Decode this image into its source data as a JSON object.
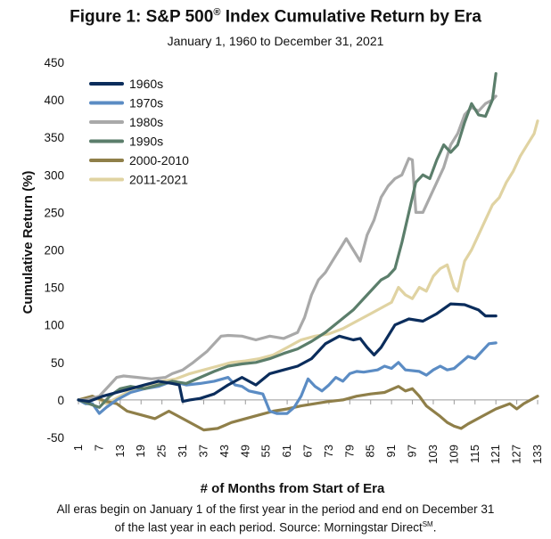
{
  "figure": {
    "title_main": "Figure 1: S&P 500",
    "title_reg": "®",
    "title_rest": " Index Cumulative Return by Era",
    "subtitle": "January 1, 1960 to December 31, 2021",
    "footnote_line1": "All eras begin on January 1 of the first year in the period and end on December 31",
    "footnote_line2": "of the last year in each period. Source: Morningstar Direct",
    "footnote_sm": "SM",
    "footnote_end": "."
  },
  "chart_data": {
    "type": "line",
    "title": "Figure 1: S&P 500® Index Cumulative Return by Era",
    "subtitle": "January 1, 1960 to December 31, 2021",
    "xlabel": "# of Months from Start of Era",
    "ylabel": "Cumulative Return (%)",
    "xlim": [
      1,
      133
    ],
    "ylim": [
      -50,
      450
    ],
    "x_ticks": [
      1,
      7,
      13,
      19,
      25,
      31,
      37,
      43,
      49,
      55,
      61,
      67,
      73,
      79,
      85,
      91,
      97,
      103,
      109,
      115,
      121,
      127,
      133
    ],
    "y_ticks": [
      -50,
      0,
      50,
      100,
      150,
      200,
      250,
      300,
      350,
      400,
      450
    ],
    "grid": false,
    "legend_position": "top-left",
    "series": [
      {
        "name": "1960s",
        "color": "#0b2d5c",
        "points": [
          [
            1,
            0
          ],
          [
            4,
            -2
          ],
          [
            8,
            5
          ],
          [
            12,
            10
          ],
          [
            16,
            15
          ],
          [
            20,
            20
          ],
          [
            24,
            25
          ],
          [
            28,
            22
          ],
          [
            30,
            20
          ],
          [
            31,
            -2
          ],
          [
            33,
            0
          ],
          [
            36,
            2
          ],
          [
            40,
            8
          ],
          [
            44,
            20
          ],
          [
            48,
            30
          ],
          [
            52,
            20
          ],
          [
            56,
            35
          ],
          [
            60,
            40
          ],
          [
            64,
            45
          ],
          [
            68,
            55
          ],
          [
            72,
            75
          ],
          [
            76,
            85
          ],
          [
            80,
            80
          ],
          [
            82,
            82
          ],
          [
            84,
            70
          ],
          [
            86,
            60
          ],
          [
            88,
            70
          ],
          [
            92,
            100
          ],
          [
            96,
            108
          ],
          [
            100,
            105
          ],
          [
            104,
            115
          ],
          [
            108,
            128
          ],
          [
            112,
            127
          ],
          [
            116,
            120
          ],
          [
            118,
            112
          ],
          [
            121,
            112
          ]
        ]
      },
      {
        "name": "1970s",
        "color": "#5b8cc4",
        "points": [
          [
            1,
            0
          ],
          [
            3,
            -5
          ],
          [
            5,
            -5
          ],
          [
            7,
            -18
          ],
          [
            9,
            -10
          ],
          [
            12,
            0
          ],
          [
            16,
            10
          ],
          [
            20,
            15
          ],
          [
            24,
            18
          ],
          [
            28,
            25
          ],
          [
            32,
            20
          ],
          [
            36,
            22
          ],
          [
            40,
            25
          ],
          [
            44,
            30
          ],
          [
            46,
            20
          ],
          [
            48,
            18
          ],
          [
            50,
            12
          ],
          [
            52,
            10
          ],
          [
            54,
            8
          ],
          [
            56,
            -15
          ],
          [
            58,
            -18
          ],
          [
            61,
            -18
          ],
          [
            63,
            -10
          ],
          [
            65,
            5
          ],
          [
            67,
            28
          ],
          [
            69,
            18
          ],
          [
            71,
            12
          ],
          [
            73,
            20
          ],
          [
            75,
            30
          ],
          [
            77,
            25
          ],
          [
            79,
            35
          ],
          [
            81,
            38
          ],
          [
            83,
            37
          ],
          [
            87,
            40
          ],
          [
            89,
            45
          ],
          [
            91,
            42
          ],
          [
            93,
            50
          ],
          [
            95,
            40
          ],
          [
            99,
            38
          ],
          [
            101,
            33
          ],
          [
            103,
            40
          ],
          [
            105,
            45
          ],
          [
            107,
            40
          ],
          [
            109,
            42
          ],
          [
            111,
            50
          ],
          [
            113,
            58
          ],
          [
            115,
            55
          ],
          [
            117,
            65
          ],
          [
            119,
            75
          ],
          [
            121,
            76
          ]
        ]
      },
      {
        "name": "1980s",
        "color": "#a9a9a9",
        "points": [
          [
            1,
            0
          ],
          [
            3,
            0
          ],
          [
            7,
            5
          ],
          [
            10,
            20
          ],
          [
            12,
            30
          ],
          [
            14,
            32
          ],
          [
            18,
            30
          ],
          [
            22,
            28
          ],
          [
            26,
            30
          ],
          [
            28,
            35
          ],
          [
            31,
            40
          ],
          [
            34,
            50
          ],
          [
            38,
            65
          ],
          [
            42,
            85
          ],
          [
            44,
            86
          ],
          [
            48,
            85
          ],
          [
            52,
            80
          ],
          [
            56,
            85
          ],
          [
            60,
            82
          ],
          [
            64,
            90
          ],
          [
            66,
            110
          ],
          [
            68,
            140
          ],
          [
            70,
            160
          ],
          [
            72,
            170
          ],
          [
            74,
            185
          ],
          [
            76,
            200
          ],
          [
            78,
            215
          ],
          [
            80,
            200
          ],
          [
            82,
            185
          ],
          [
            84,
            220
          ],
          [
            86,
            240
          ],
          [
            88,
            270
          ],
          [
            90,
            285
          ],
          [
            92,
            295
          ],
          [
            94,
            300
          ],
          [
            96,
            322
          ],
          [
            97,
            320
          ],
          [
            98,
            250
          ],
          [
            100,
            250
          ],
          [
            102,
            270
          ],
          [
            104,
            290
          ],
          [
            106,
            310
          ],
          [
            108,
            340
          ],
          [
            110,
            355
          ],
          [
            112,
            380
          ],
          [
            114,
            390
          ],
          [
            116,
            385
          ],
          [
            118,
            395
          ],
          [
            120,
            400
          ],
          [
            121,
            405
          ]
        ]
      },
      {
        "name": "1990s",
        "color": "#5b7e6b",
        "points": [
          [
            1,
            0
          ],
          [
            4,
            -5
          ],
          [
            7,
            -10
          ],
          [
            10,
            5
          ],
          [
            13,
            15
          ],
          [
            16,
            18
          ],
          [
            20,
            15
          ],
          [
            24,
            20
          ],
          [
            28,
            25
          ],
          [
            32,
            22
          ],
          [
            36,
            30
          ],
          [
            40,
            38
          ],
          [
            44,
            45
          ],
          [
            48,
            48
          ],
          [
            52,
            50
          ],
          [
            56,
            55
          ],
          [
            60,
            62
          ],
          [
            64,
            68
          ],
          [
            68,
            78
          ],
          [
            72,
            90
          ],
          [
            76,
            105
          ],
          [
            80,
            120
          ],
          [
            84,
            140
          ],
          [
            88,
            160
          ],
          [
            90,
            165
          ],
          [
            92,
            175
          ],
          [
            94,
            210
          ],
          [
            96,
            250
          ],
          [
            98,
            290
          ],
          [
            100,
            300
          ],
          [
            102,
            295
          ],
          [
            104,
            320
          ],
          [
            106,
            340
          ],
          [
            108,
            330
          ],
          [
            110,
            340
          ],
          [
            112,
            370
          ],
          [
            114,
            395
          ],
          [
            116,
            380
          ],
          [
            118,
            378
          ],
          [
            120,
            400
          ],
          [
            121,
            435
          ]
        ]
      },
      {
        "name": "2000-2010",
        "color": "#8f7f49",
        "points": [
          [
            1,
            0
          ],
          [
            5,
            5
          ],
          [
            9,
            -2
          ],
          [
            12,
            -5
          ],
          [
            15,
            -15
          ],
          [
            19,
            -20
          ],
          [
            23,
            -25
          ],
          [
            27,
            -15
          ],
          [
            31,
            -25
          ],
          [
            35,
            -35
          ],
          [
            37,
            -40
          ],
          [
            41,
            -38
          ],
          [
            45,
            -30
          ],
          [
            49,
            -25
          ],
          [
            53,
            -20
          ],
          [
            57,
            -15
          ],
          [
            61,
            -12
          ],
          [
            65,
            -8
          ],
          [
            69,
            -5
          ],
          [
            73,
            -2
          ],
          [
            77,
            0
          ],
          [
            81,
            5
          ],
          [
            85,
            8
          ],
          [
            89,
            10
          ],
          [
            93,
            18
          ],
          [
            95,
            12
          ],
          [
            97,
            15
          ],
          [
            99,
            5
          ],
          [
            101,
            -8
          ],
          [
            103,
            -15
          ],
          [
            105,
            -22
          ],
          [
            107,
            -30
          ],
          [
            109,
            -35
          ],
          [
            111,
            -38
          ],
          [
            113,
            -32
          ],
          [
            117,
            -22
          ],
          [
            121,
            -12
          ],
          [
            125,
            -5
          ],
          [
            127,
            -12
          ],
          [
            129,
            -5
          ],
          [
            131,
            0
          ],
          [
            133,
            5
          ]
        ]
      },
      {
        "name": "2011-2021",
        "color": "#e0d3a2",
        "points": [
          [
            1,
            0
          ],
          [
            5,
            5
          ],
          [
            9,
            -5
          ],
          [
            13,
            5
          ],
          [
            17,
            15
          ],
          [
            21,
            20
          ],
          [
            25,
            25
          ],
          [
            29,
            28
          ],
          [
            33,
            35
          ],
          [
            37,
            40
          ],
          [
            41,
            45
          ],
          [
            45,
            50
          ],
          [
            49,
            52
          ],
          [
            53,
            55
          ],
          [
            57,
            60
          ],
          [
            61,
            70
          ],
          [
            65,
            80
          ],
          [
            69,
            85
          ],
          [
            73,
            88
          ],
          [
            77,
            95
          ],
          [
            81,
            105
          ],
          [
            85,
            115
          ],
          [
            89,
            125
          ],
          [
            91,
            130
          ],
          [
            93,
            150
          ],
          [
            95,
            140
          ],
          [
            97,
            135
          ],
          [
            99,
            150
          ],
          [
            101,
            145
          ],
          [
            103,
            165
          ],
          [
            105,
            175
          ],
          [
            107,
            180
          ],
          [
            109,
            150
          ],
          [
            110,
            145
          ],
          [
            112,
            185
          ],
          [
            114,
            200
          ],
          [
            116,
            220
          ],
          [
            118,
            240
          ],
          [
            120,
            260
          ],
          [
            122,
            270
          ],
          [
            124,
            290
          ],
          [
            126,
            305
          ],
          [
            128,
            325
          ],
          [
            130,
            340
          ],
          [
            132,
            355
          ],
          [
            133,
            372
          ]
        ]
      }
    ]
  }
}
